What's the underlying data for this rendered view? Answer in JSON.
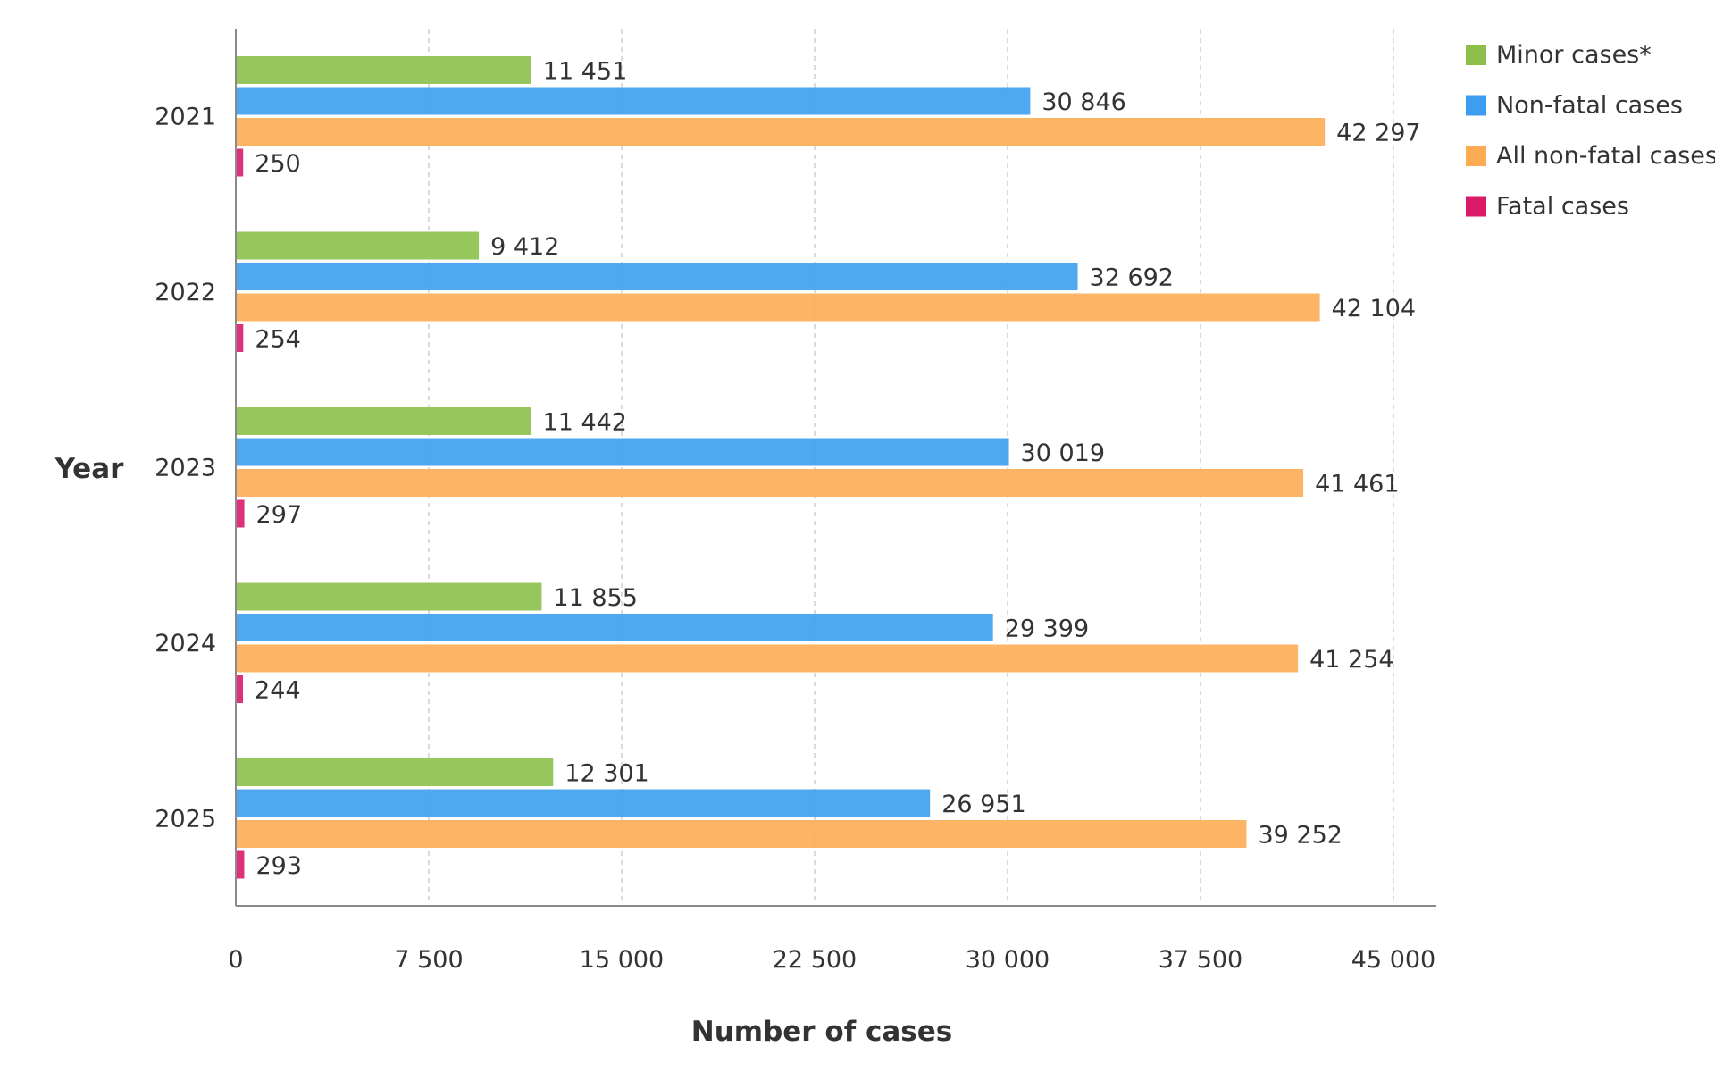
{
  "chart_data": {
    "type": "bar",
    "orientation": "horizontal",
    "categories": [
      "2021",
      "2022",
      "2023",
      "2024",
      "2025"
    ],
    "series": [
      {
        "name": "Minor cases*",
        "color": "#8cc04b",
        "values": [
          11451,
          9412,
          11442,
          11855,
          12301
        ],
        "labels": [
          "11 451",
          "9 412",
          "11 442",
          "11 855",
          "12 301"
        ]
      },
      {
        "name": "Non-fatal cases",
        "color": "#3d9ef0",
        "values": [
          30846,
          32692,
          30019,
          29399,
          26951
        ],
        "labels": [
          "30 846",
          "32 692",
          "30 019",
          "29 399",
          "26 951"
        ]
      },
      {
        "name": "All non-fatal cases",
        "color": "#fdac54",
        "values": [
          42297,
          42104,
          41461,
          41254,
          39252
        ],
        "labels": [
          "42 297",
          "42 104",
          "41 461",
          "41 254",
          "39 252"
        ]
      },
      {
        "name": "Fatal cases",
        "color": "#dc1a6a",
        "values": [
          250,
          254,
          297,
          244,
          293
        ],
        "labels": [
          "250",
          "254",
          "297",
          "244",
          "293"
        ]
      }
    ],
    "xlim": [
      0,
      45000
    ],
    "xticks": [
      0,
      7500,
      15000,
      22500,
      30000,
      37500,
      45000
    ],
    "xtick_labels": [
      "0",
      "7 500",
      "15 000",
      "22 500",
      "30 000",
      "37 500",
      "45 000"
    ],
    "xlabel": "Number of cases",
    "ylabel": "Year",
    "grid": "vertical dashed",
    "legend": "top-right"
  }
}
